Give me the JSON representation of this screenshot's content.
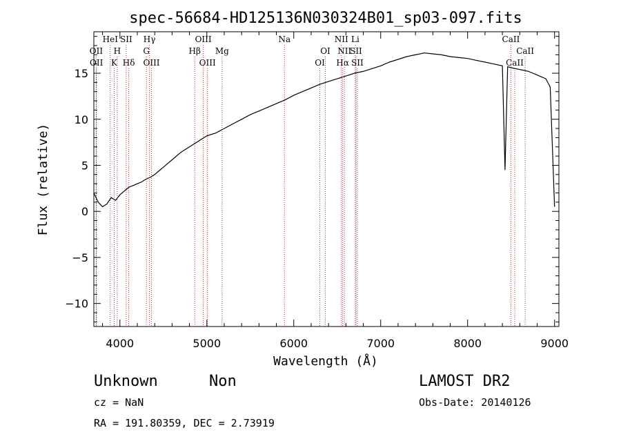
{
  "chart_data": {
    "type": "line",
    "title": "spec-56684-HD125136N030324B01_sp03-097.fits",
    "xlabel": "Wavelength (Å)",
    "ylabel": "Flux (relative)",
    "xlim": [
      3700,
      9050
    ],
    "ylim": [
      -12.5,
      19.5
    ],
    "x_ticks": [
      4000,
      5000,
      6000,
      7000,
      8000,
      9000
    ],
    "y_ticks": [
      -10,
      -5,
      0,
      5,
      10,
      15
    ],
    "grid": false,
    "series": [
      {
        "x": [
          3700,
          3750,
          3800,
          3850,
          3900,
          3950,
          4000,
          4050,
          4100,
          4150,
          4200,
          4250,
          4300,
          4350,
          4400,
          4450,
          4500,
          4550,
          4600,
          4650,
          4700,
          4750,
          4800,
          4850,
          4900,
          4950,
          5000,
          5100,
          5200,
          5300,
          5400,
          5500,
          5600,
          5700,
          5800,
          5900,
          6000,
          6100,
          6200,
          6300,
          6400,
          6500,
          6600,
          6700,
          6800,
          6900,
          7000,
          7100,
          7200,
          7300,
          7400,
          7500,
          7600,
          7700,
          7800,
          7900,
          8000,
          8100,
          8200,
          8300,
          8400,
          8430,
          8460,
          8500,
          8550,
          8600,
          8650,
          8700,
          8750,
          8800,
          8850,
          8900,
          8950,
          9000
        ],
        "y": [
          2,
          1,
          0.5,
          0.8,
          1.5,
          1.2,
          1.8,
          2.2,
          2.6,
          2.8,
          3.0,
          3.2,
          3.5,
          3.7,
          4.0,
          4.4,
          4.8,
          5.2,
          5.6,
          6.0,
          6.4,
          6.7,
          7.0,
          7.3,
          7.6,
          7.9,
          8.2,
          8.5,
          9.0,
          9.5,
          10.0,
          10.5,
          10.9,
          11.3,
          11.7,
          12.1,
          12.6,
          13.0,
          13.4,
          13.8,
          14.1,
          14.4,
          14.7,
          15.0,
          15.2,
          15.5,
          15.8,
          16.2,
          16.5,
          16.8,
          17.0,
          17.2,
          17.1,
          17.0,
          16.8,
          16.7,
          16.6,
          16.4,
          16.2,
          16.0,
          15.8,
          4.5,
          15.7,
          15.6,
          15.5,
          15.4,
          15.3,
          15.2,
          15.0,
          14.8,
          14.6,
          14.4,
          13.5,
          0.5
        ]
      }
    ],
    "spectral_lines": [
      {
        "name": "OII",
        "wl": 3727,
        "row": 2
      },
      {
        "name": "OII",
        "wl": 3729,
        "row": 3
      },
      {
        "name": "HeI",
        "wl": 3889,
        "row": 1
      },
      {
        "name": "K",
        "wl": 3934,
        "row": 3
      },
      {
        "name": "H",
        "wl": 3969,
        "row": 2
      },
      {
        "name": "SII",
        "wl": 4072,
        "row": 1
      },
      {
        "name": "Hδ",
        "wl": 4102,
        "row": 3
      },
      {
        "name": "Hγ",
        "wl": 4340,
        "row": 1
      },
      {
        "name": "G",
        "wl": 4305,
        "row": 2
      },
      {
        "name": "OIII",
        "wl": 4363,
        "row": 3
      },
      {
        "name": "Hβ",
        "wl": 4861,
        "row": 2
      },
      {
        "name": "OIII",
        "wl": 4959,
        "row": 1
      },
      {
        "name": "OIII",
        "wl": 5007,
        "row": 3
      },
      {
        "name": "Mg",
        "wl": 5175,
        "row": 2
      },
      {
        "name": "Na",
        "wl": 5893,
        "row": 1
      },
      {
        "name": "OI",
        "wl": 6300,
        "row": 3
      },
      {
        "name": "OI",
        "wl": 6363,
        "row": 2
      },
      {
        "name": "NII",
        "wl": 6548,
        "row": 1
      },
      {
        "name": "Hα",
        "wl": 6563,
        "row": 3
      },
      {
        "name": "NII",
        "wl": 6583,
        "row": 2
      },
      {
        "name": "Li",
        "wl": 6708,
        "row": 1
      },
      {
        "name": "SII",
        "wl": 6716,
        "row": 2
      },
      {
        "name": "SII",
        "wl": 6731,
        "row": 3
      },
      {
        "name": "CaII",
        "wl": 8498,
        "row": 1
      },
      {
        "name": "CaII",
        "wl": 8542,
        "row": 3
      },
      {
        "name": "CaII",
        "wl": 8662,
        "row": 2
      }
    ]
  },
  "info": {
    "object_class": "Unknown",
    "subclass": "Non",
    "survey": "LAMOST DR2",
    "cz": "cz = NaN",
    "obs_date": "Obs-Date: 20140126",
    "coords": "RA = 191.80359, DEC =   2.73919"
  }
}
